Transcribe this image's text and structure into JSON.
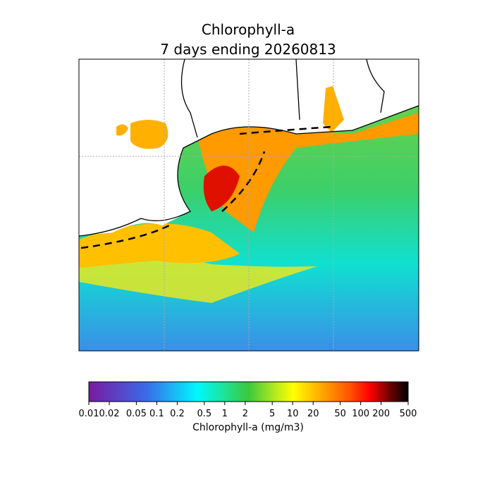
{
  "title": "Chlorophyll-a",
  "subtitle": "7 days ending 20260813",
  "colorbar": {
    "label": "Chlorophyll-a (mg/m3)",
    "scale": "log",
    "lim": [
      0.01,
      500
    ],
    "ticks": [
      0.01,
      0.02,
      0.05,
      0.1,
      0.2,
      0.5,
      1,
      2,
      5,
      10,
      20,
      50,
      100,
      200,
      500
    ]
  }
}
